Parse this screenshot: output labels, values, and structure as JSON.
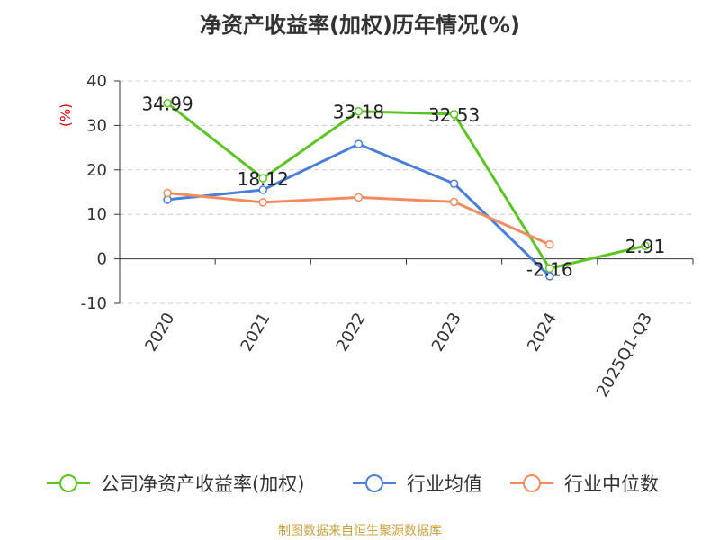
{
  "chart_data": {
    "type": "line",
    "title": "净资产收益率(加权)历年情况(%)",
    "ylabel": "(%)",
    "xlabel": "",
    "ylim": [
      -10,
      40
    ],
    "yticks": [
      -10,
      0,
      10,
      20,
      30,
      40
    ],
    "grid": true,
    "legend_position": "bottom",
    "categories": [
      "2020",
      "2021",
      "2022",
      "2023",
      "2024",
      "2025Q1-Q3"
    ],
    "series": [
      {
        "name": "公司净资产收益率(加权)",
        "color": "#5cc424",
        "values": [
          34.99,
          18.12,
          33.18,
          32.53,
          -2.16,
          2.91
        ],
        "labels": [
          "34.99",
          "18.12",
          "33.18",
          "32.53",
          "-2.16",
          "2.91"
        ]
      },
      {
        "name": "行业均值",
        "color": "#4a7fd8",
        "values": [
          13.3,
          15.5,
          25.8,
          16.9,
          -3.9,
          null
        ]
      },
      {
        "name": "行业中位数",
        "color": "#f28c5e",
        "values": [
          14.8,
          12.7,
          13.8,
          12.8,
          3.2,
          null
        ]
      }
    ]
  },
  "source": "制图数据来自恒生聚源数据库"
}
